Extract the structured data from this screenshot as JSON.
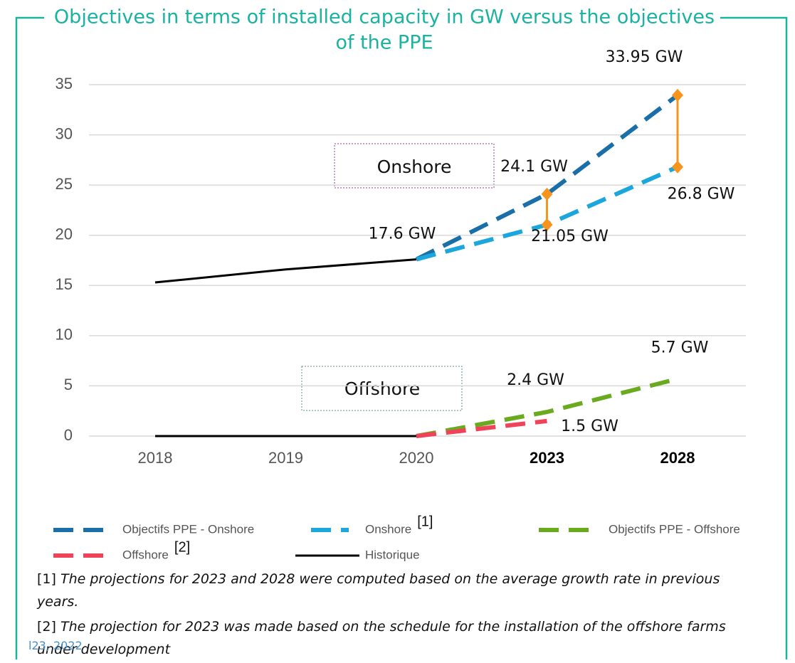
{
  "chart_data": {
    "type": "line",
    "title": [
      "Objectives in terms of installed capacity in GW versus the objectives",
      "of the PPE"
    ],
    "categories": [
      "2018",
      "2019",
      "2020",
      "2023",
      "2028"
    ],
    "category_bold": [
      false,
      false,
      false,
      true,
      true
    ],
    "ylim": [
      0,
      35
    ],
    "yticks": [
      0,
      5,
      10,
      15,
      20,
      25,
      30,
      35
    ],
    "grid": true,
    "annotations": [
      "Onshore",
      "Offshore"
    ],
    "series": [
      {
        "name": "Objectifs PPE - Onshore",
        "color": "#1a6fa8",
        "dashed": true,
        "values": [
          null,
          null,
          17.6,
          24.1,
          33.95
        ],
        "value_labels": [
          null,
          null,
          "17.6 GW",
          "24.1 GW",
          "33.95 GW"
        ]
      },
      {
        "name": "Onshore",
        "footnote": "[1]",
        "color": "#1ba6dc",
        "dashed": true,
        "values": [
          null,
          null,
          17.6,
          21.05,
          26.8
        ],
        "value_labels": [
          null,
          null,
          null,
          "21.05 GW",
          "26.8 GW"
        ]
      },
      {
        "name": "Objectifs PPE - Offshore",
        "color": "#6aaa1e",
        "dashed": true,
        "values": [
          null,
          null,
          0,
          2.4,
          5.7
        ],
        "value_labels": [
          null,
          null,
          null,
          "2.4 GW",
          "5.7 GW"
        ]
      },
      {
        "name": "Offshore",
        "footnote": "[2]",
        "color": "#f0435a",
        "dashed": true,
        "values": [
          null,
          null,
          0,
          1.5,
          null
        ],
        "value_labels": [
          null,
          null,
          null,
          "1.5 GW",
          null
        ]
      },
      {
        "name": "Historique",
        "color": "#000000",
        "dashed": false,
        "values": [
          [
            15.3,
            16.6,
            17.6,
            null,
            null
          ],
          [
            0,
            0,
            0,
            null,
            null
          ]
        ]
      }
    ],
    "range_markers": {
      "color": "#f7941d",
      "series": [
        0,
        1
      ],
      "at": [
        3,
        4
      ]
    },
    "notes": [
      {
        "marker": "[1]",
        "text": "The projections for 2023 and 2028 were computed based on the average growth rate in previous years."
      },
      {
        "marker": "[2]",
        "text": "The projection for 2023 was made based on the schedule for the installation of the offshore farms under development"
      }
    ],
    "footer": "l23, 2022"
  }
}
